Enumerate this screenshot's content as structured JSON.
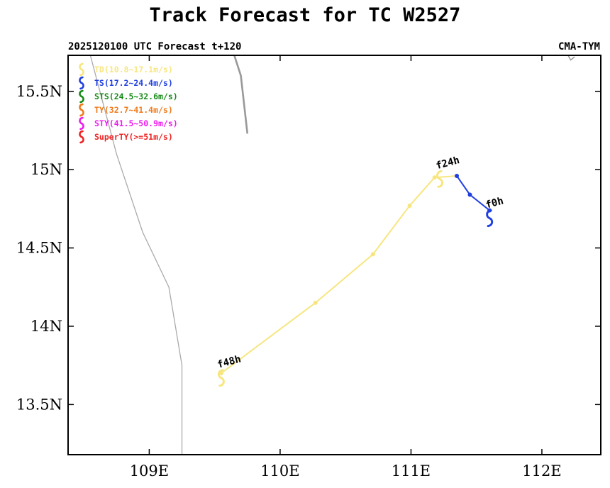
{
  "chart_data": {
    "type": "line",
    "title": "Track Forecast for TC W2527",
    "subtitle_left": "2025120100 UTC Forecast t+120",
    "subtitle_right": "CMA-TYM",
    "xlim": [
      108.38,
      112.45
    ],
    "ylim": [
      13.18,
      15.73
    ],
    "x_ticks": [
      {
        "value": 109,
        "label": "109E"
      },
      {
        "value": 110,
        "label": "110E"
      },
      {
        "value": 111,
        "label": "111E"
      },
      {
        "value": 112,
        "label": "112E"
      }
    ],
    "y_ticks": [
      {
        "value": 13.5,
        "label": "13.5N"
      },
      {
        "value": 14,
        "label": "14N"
      },
      {
        "value": 14.5,
        "label": "14.5N"
      },
      {
        "value": 15,
        "label": "15N"
      },
      {
        "value": 15.5,
        "label": "15.5N"
      }
    ],
    "legend": [
      {
        "label": "TD(10.8~17.1m/s)",
        "color": "#f7e67f"
      },
      {
        "label": "TS(17.2~24.4m/s)",
        "color": "#1f3fe0"
      },
      {
        "label": "STS(24.5~32.6m/s)",
        "color": "#178a17"
      },
      {
        "label": "TY(32.7~41.4m/s)",
        "color": "#f07a1a"
      },
      {
        "label": "STY(41.5~50.9m/s)",
        "color": "#ef1aef"
      },
      {
        "label": "SuperTY(>=51m/s)",
        "color": "#ee2222"
      }
    ],
    "track": [
      {
        "lon": 111.6,
        "lat": 14.74,
        "category": "TS"
      },
      {
        "lon": 111.45,
        "lat": 14.84,
        "category": "TS"
      },
      {
        "lon": 111.35,
        "lat": 14.96,
        "category": "TS"
      },
      {
        "lon": 111.18,
        "lat": 14.95,
        "category": "TD"
      },
      {
        "lon": 110.99,
        "lat": 14.77,
        "category": "TD"
      },
      {
        "lon": 110.71,
        "lat": 14.46,
        "category": "TD"
      },
      {
        "lon": 110.27,
        "lat": 14.15,
        "category": "TD"
      },
      {
        "lon": 109.55,
        "lat": 13.7,
        "category": "TD"
      }
    ],
    "markers": [
      {
        "label": "f0h",
        "lon": 111.6,
        "lat": 14.69,
        "category": "TS"
      },
      {
        "label": "f24h",
        "lon": 111.22,
        "lat": 14.94,
        "category": "TD"
      },
      {
        "label": "f48h",
        "lon": 109.55,
        "lat": 13.67,
        "category": "TD"
      }
    ],
    "coastlines": [
      [
        [
          108.55,
          15.73
        ],
        [
          108.75,
          15.1
        ],
        [
          108.95,
          14.6
        ],
        [
          109.15,
          14.25
        ],
        [
          109.25,
          13.75
        ],
        [
          109.25,
          13.18
        ]
      ]
    ],
    "island_outlines": [
      [
        [
          109.65,
          15.73
        ],
        [
          109.7,
          15.6
        ],
        [
          109.75,
          15.23
        ]
      ],
      [
        [
          112.2,
          15.73
        ],
        [
          112.22,
          15.7
        ],
        [
          112.25,
          15.72
        ]
      ]
    ]
  }
}
